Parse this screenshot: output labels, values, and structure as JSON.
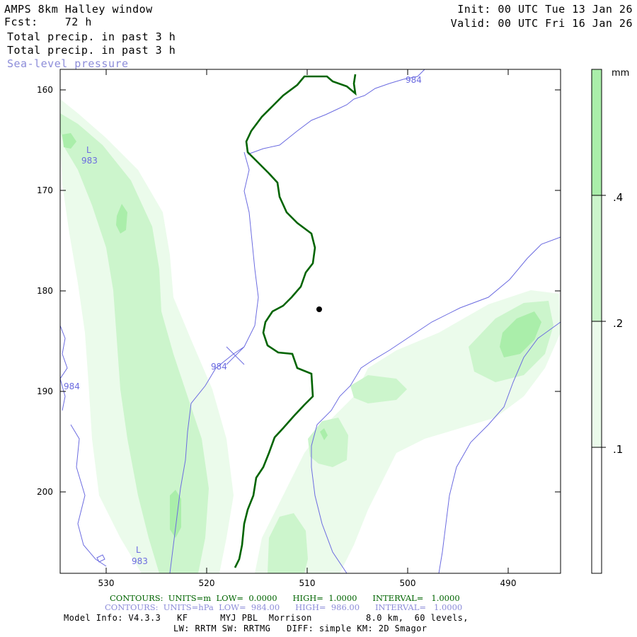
{
  "header": {
    "title": "AMPS 8km Halley window",
    "fcst": "Fcst:    72 h",
    "init": "Init: 00 UTC Tue 13 Jan 26",
    "valid": "Valid: 00 UTC Fri 16 Jan 26",
    "field1": "Total precip. in past 3 h",
    "field2": "Total precip. in past 3 h",
    "field3": "Sea-level pressure"
  },
  "axes": {
    "y_ticks": [
      "160",
      "170",
      "180",
      "190",
      "200"
    ],
    "x_ticks": [
      "530",
      "520",
      "510",
      "500",
      "490"
    ]
  },
  "contour_labels": {
    "low_top": "L",
    "low_top_value": "983",
    "low_bottom": "L",
    "low_bottom_value": "983",
    "p984_top": "984",
    "p984_mid": "984",
    "p984_left": "984"
  },
  "colorbar": {
    "unit": "mm",
    "labels": [
      ".4",
      ".2",
      ".1"
    ],
    "colors": [
      "#aaeeaa",
      "#ccf5cc",
      "#ebfbeb",
      "#ffffff"
    ]
  },
  "footer": {
    "contours_green": "CONTOURS:  UNITS=m  LOW=  0.0000      HIGH=  1.0000      INTERVAL=   1.0000",
    "contours_blue": "CONTOURS:  UNITS=hPa  LOW=  984.00      HIGH=  986.00      INTERVAL=   1.0000",
    "model_info": "Model Info: V4.3.3   KF      MYJ PBL  Morrison          8.0 km,  60 levels,",
    "physics": "LW: RRTM SW: RRTMG   DIFF: simple KM: 2D Smagor"
  },
  "colors": {
    "green_contour": "#006400",
    "pressure_contour": "#6b6be0",
    "light": "#ebfbeb",
    "mid": "#ccf5cc",
    "dark": "#aaeeaa"
  }
}
